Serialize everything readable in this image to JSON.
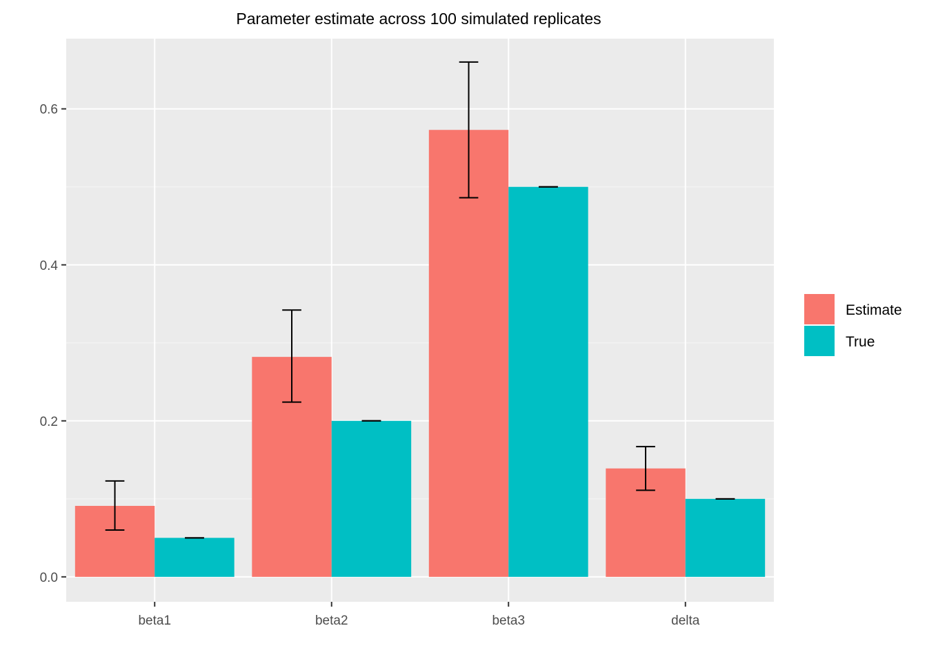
{
  "chart_data": {
    "type": "bar",
    "title": "Parameter estimate across 100 simulated replicates",
    "xlabel": "",
    "ylabel": "",
    "categories": [
      "beta1",
      "beta2",
      "beta3",
      "delta"
    ],
    "ylim": [
      -0.032,
      0.69
    ],
    "y_ticks": [
      "0.0",
      "0.2",
      "0.4",
      "0.6"
    ],
    "grid": true,
    "legend_position": "right",
    "series": [
      {
        "name": "Estimate",
        "color": "#F8766D",
        "values": [
          0.091,
          0.282,
          0.573,
          0.139
        ],
        "error_low": [
          0.06,
          0.224,
          0.486,
          0.111
        ],
        "error_high": [
          0.123,
          0.342,
          0.66,
          0.167
        ]
      },
      {
        "name": "True",
        "color": "#00BFC4",
        "values": [
          0.05,
          0.2,
          0.5,
          0.1
        ],
        "error_low": [
          0.05,
          0.2,
          0.5,
          0.1
        ],
        "error_high": [
          0.05,
          0.2,
          0.5,
          0.1
        ]
      }
    ],
    "colors": {
      "panel_background": "#EBEBEB",
      "grid_major": "#FFFFFF",
      "error_bar": "#000000"
    }
  }
}
